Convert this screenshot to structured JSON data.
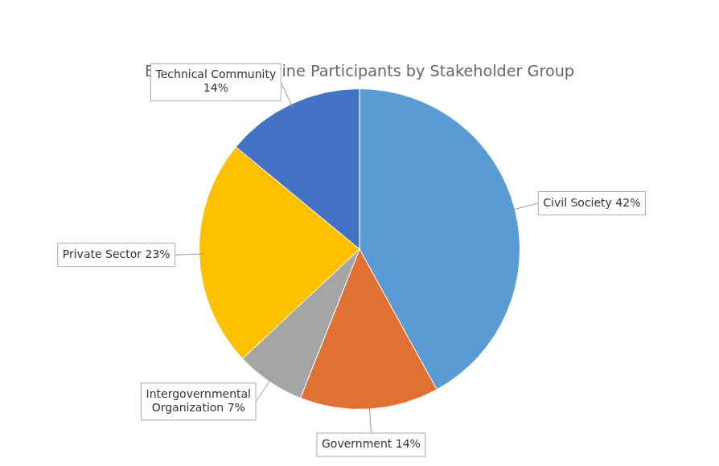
{
  "chart_data": {
    "type": "pie",
    "title": "Breakdown of Online Participants by Stakeholder Group",
    "categories": [
      "Civil Society",
      "Government",
      "Intergovernmental\nOrganization",
      "Private Sector",
      "Technical Community"
    ],
    "values": [
      42,
      14,
      7,
      23,
      14
    ],
    "colors": [
      "#5B9BD5",
      "#E07033",
      "#A5A5A5",
      "#FFC000",
      "#4472C4"
    ],
    "data_labels": true,
    "value_labels": [
      "Civil Society 42%",
      "Government 14%",
      "Intergovernmental\nOrganization 7%",
      "Private Sector 23%",
      "Technical Community\n14%"
    ]
  }
}
